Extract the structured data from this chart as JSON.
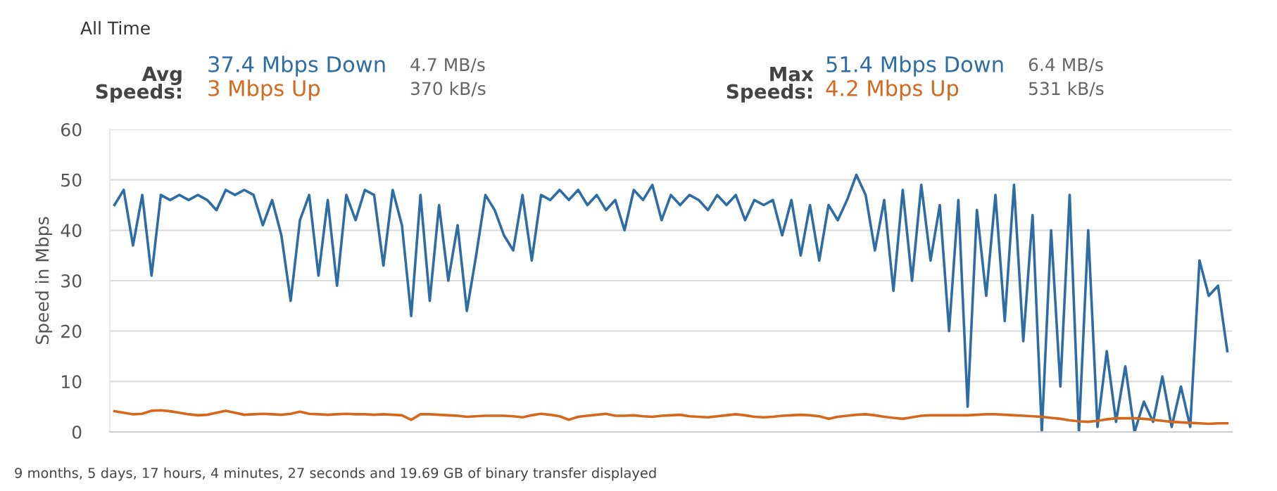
{
  "chart_data": {
    "type": "line",
    "title": "All Time",
    "ylabel": "Speed in Mbps",
    "categories": [
      null,
      null,
      null,
      null,
      null,
      null,
      null,
      null,
      null,
      null,
      null,
      null,
      null,
      null,
      null,
      null,
      null,
      null,
      null,
      null,
      null,
      null,
      null,
      null,
      null,
      null,
      null,
      null,
      null,
      null,
      null,
      null,
      null,
      null,
      null,
      null,
      null,
      null,
      null,
      null,
      null,
      null,
      null,
      null,
      null,
      null,
      null,
      null,
      null,
      null,
      null,
      null,
      null,
      null,
      null,
      null,
      null,
      null,
      null,
      null,
      null,
      null,
      null,
      null,
      null,
      null,
      null,
      null,
      null,
      null,
      null,
      null,
      null,
      null,
      null,
      null,
      null,
      null,
      null,
      null,
      null,
      null,
      null,
      null,
      null,
      null,
      null,
      null,
      null,
      null,
      null,
      null,
      null,
      null,
      null,
      null,
      null,
      null,
      null,
      null,
      null,
      null,
      null,
      null,
      null,
      null,
      null,
      null,
      null,
      null,
      null,
      null,
      null,
      null,
      null,
      null,
      null,
      null,
      null,
      null,
      null
    ],
    "series": [
      {
        "color": "#2e6da4",
        "values": [
          45,
          48,
          37,
          47,
          31,
          47,
          46,
          47,
          46,
          47,
          46,
          44,
          48,
          47,
          48,
          47,
          41,
          46,
          39,
          26,
          42,
          47,
          31,
          46,
          29,
          47,
          42,
          48,
          47,
          33,
          48,
          41,
          23,
          47,
          26,
          45,
          30,
          41,
          24,
          35,
          47,
          44,
          39,
          36,
          47,
          34,
          47,
          46,
          48,
          46,
          48,
          45,
          47,
          44,
          46,
          40,
          48,
          46,
          49,
          42,
          47,
          45,
          47,
          46,
          44,
          47,
          45,
          47,
          42,
          46,
          45,
          46,
          39,
          46,
          35,
          45,
          34,
          45,
          42,
          46,
          51,
          47,
          36,
          46,
          28,
          48,
          30,
          49,
          34,
          45,
          20,
          46,
          5,
          44,
          27,
          47,
          22,
          49,
          18,
          43,
          0,
          40,
          9,
          47,
          0,
          40,
          1,
          16,
          2,
          13,
          0,
          6,
          2,
          11,
          1,
          9,
          1,
          34,
          27,
          29,
          16
        ]
      },
      {
        "color": "#d2691e",
        "values": [
          4.1,
          3.8,
          3.5,
          3.6,
          4.2,
          4.3,
          4.1,
          3.8,
          3.5,
          3.3,
          3.4,
          3.8,
          4.2,
          3.8,
          3.4,
          3.5,
          3.6,
          3.5,
          3.4,
          3.6,
          4.0,
          3.6,
          3.5,
          3.4,
          3.5,
          3.6,
          3.5,
          3.5,
          3.4,
          3.5,
          3.4,
          3.3,
          2.4,
          3.5,
          3.5,
          3.4,
          3.3,
          3.2,
          3.0,
          3.1,
          3.2,
          3.2,
          3.2,
          3.1,
          2.9,
          3.3,
          3.6,
          3.4,
          3.1,
          2.4,
          3.0,
          3.2,
          3.4,
          3.6,
          3.2,
          3.2,
          3.3,
          3.1,
          3.0,
          3.2,
          3.3,
          3.4,
          3.1,
          3.0,
          2.9,
          3.1,
          3.3,
          3.5,
          3.3,
          3.0,
          2.9,
          3.0,
          3.2,
          3.3,
          3.4,
          3.3,
          3.1,
          2.6,
          3.0,
          3.2,
          3.4,
          3.5,
          3.3,
          3.0,
          2.8,
          2.6,
          2.9,
          3.2,
          3.3,
          3.3,
          3.3,
          3.3,
          3.3,
          3.4,
          3.5,
          3.5,
          3.4,
          3.3,
          3.2,
          3.1,
          3.0,
          2.8,
          2.6,
          2.3,
          2.1,
          2.0,
          2.2,
          2.5,
          2.7,
          2.7,
          2.7,
          2.6,
          2.4,
          2.2,
          2.0,
          1.9,
          1.8,
          1.7,
          1.6,
          1.7,
          1.7
        ]
      }
    ],
    "ylim": [
      0,
      60
    ],
    "yticks": [
      0,
      10,
      20,
      30,
      40,
      50,
      60
    ],
    "grid": "y",
    "legend": false,
    "marker": "none",
    "line_style": "solid",
    "annotations": [
      "Avg\nSpeeds:",
      "37.4 Mbps Down",
      "3 Mbps Up",
      "4.7 MB/s",
      "370 kB/s",
      "Max\nSpeeds:",
      "51.4 Mbps Down",
      "4.2 Mbps Up",
      "6.4 MB/s",
      "531 kB/s",
      "9 months, 5 days, 17 hours, 4 minutes, 27 seconds and 19.69 GB of binary transfer displayed"
    ]
  }
}
